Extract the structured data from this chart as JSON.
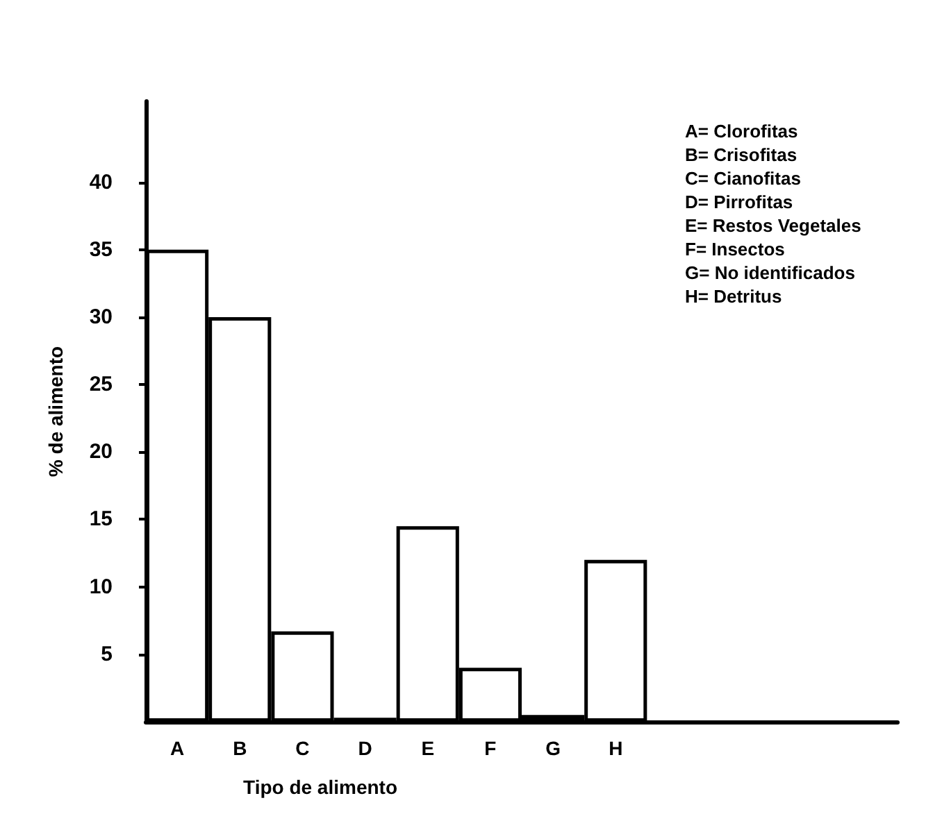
{
  "chart_data": {
    "type": "bar",
    "xlabel": "Tipo de alimento",
    "ylabel": "% de alimento",
    "categories": [
      "A",
      "B",
      "C",
      "D",
      "E",
      "F",
      "G",
      "H",
      null,
      null,
      null,
      null
    ],
    "values": [
      35,
      30,
      6.7,
      0.3,
      14.5,
      4,
      0.5,
      12,
      null,
      null,
      null,
      null
    ],
    "color": "#ffffff",
    "ylim": [
      0,
      46
    ],
    "yticks": [
      5,
      10,
      15,
      20,
      25,
      30,
      35,
      40
    ],
    "grid": false,
    "annotations": [
      "A= Clorofitas",
      "B= Crisofitas",
      "C= Cianofitas",
      "D= Pirrofitas",
      "E= Restos Vegetales",
      "F= Insectos",
      "G= No identificados",
      "H= Detritus"
    ]
  }
}
